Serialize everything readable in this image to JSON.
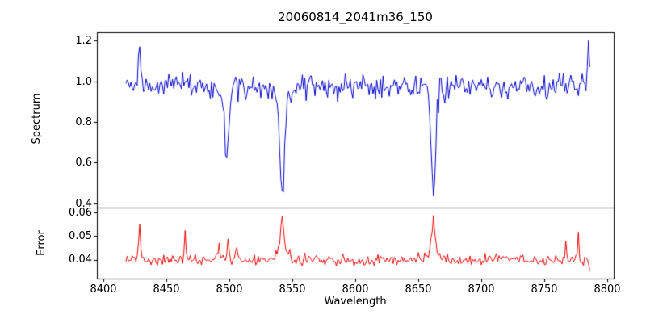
{
  "figure": {
    "background": "#ffffff",
    "axis_color": "#000000"
  },
  "chart_data": {
    "type": "line",
    "title": "20060814_2041m36_150",
    "xlabel": "Wavelength",
    "grid": false,
    "legend": false,
    "xlim": [
      8395,
      8805
    ],
    "xticks": [
      8400,
      8450,
      8500,
      8550,
      8600,
      8650,
      8700,
      8750,
      8800
    ],
    "xtick_labels": [
      "8400",
      "8450",
      "8500",
      "8550",
      "8600",
      "8650",
      "8700",
      "8750",
      "8800"
    ],
    "panels": [
      {
        "name": "spectrum",
        "ylabel": "Spectrum",
        "ylim": [
          0.38,
          1.24
        ],
        "yticks": [
          1.2,
          1.0,
          0.8,
          0.6,
          0.4
        ],
        "ytick_labels": [
          "1.2",
          "1.0",
          "0.8",
          "0.6",
          "0.4"
        ],
        "color": "#0000cc",
        "line_width": 1,
        "series": {
          "x_start": 8418,
          "x_end": 8786,
          "x_step": 1,
          "baseline": 0.975,
          "noise_amplitude": 0.09,
          "seed": 20060814,
          "features": [
            {
              "type": "emission",
              "center": 8429,
              "height": 0.21,
              "width": 1.3
            },
            {
              "type": "absorption",
              "center": 8498,
              "depth": 0.32,
              "width": 2.0
            },
            {
              "type": "absorption",
              "center": 8498,
              "depth": 0.05,
              "width": 5.0
            },
            {
              "type": "absorption",
              "center": 8542,
              "depth": 0.47,
              "width": 2.4
            },
            {
              "type": "absorption",
              "center": 8542,
              "depth": 0.08,
              "width": 7.0
            },
            {
              "type": "absorption",
              "center": 8662,
              "depth": 0.46,
              "width": 2.2
            },
            {
              "type": "absorption",
              "center": 8662,
              "depth": 0.07,
              "width": 6.0
            },
            {
              "type": "emission",
              "center": 8785,
              "height": 0.23,
              "width": 0.9
            }
          ]
        }
      },
      {
        "name": "error",
        "ylabel": "Error",
        "ylim": [
          0.032,
          0.062
        ],
        "yticks": [
          0.06,
          0.05,
          0.04
        ],
        "ytick_labels": [
          "0.06",
          "0.05",
          "0.04"
        ],
        "color": "#ee0000",
        "line_width": 1,
        "series": {
          "x_start": 8418,
          "x_end": 8786,
          "x_step": 1,
          "baseline": 0.04,
          "noise_amplitude": 0.0035,
          "seed": 2041,
          "features": [
            {
              "type": "emission",
              "center": 8429,
              "height": 0.016,
              "width": 1.0
            },
            {
              "type": "emission",
              "center": 8465,
              "height": 0.011,
              "width": 0.9
            },
            {
              "type": "emission",
              "center": 8492,
              "height": 0.006,
              "width": 1.4
            },
            {
              "type": "emission",
              "center": 8499,
              "height": 0.007,
              "width": 1.2
            },
            {
              "type": "emission",
              "center": 8506,
              "height": 0.004,
              "width": 1.5
            },
            {
              "type": "emission",
              "center": 8542,
              "height": 0.015,
              "width": 1.6
            },
            {
              "type": "emission",
              "center": 8542,
              "height": 0.004,
              "width": 6.0
            },
            {
              "type": "emission",
              "center": 8662,
              "height": 0.014,
              "width": 1.8
            },
            {
              "type": "emission",
              "center": 8662,
              "height": 0.003,
              "width": 6.0
            },
            {
              "type": "emission",
              "center": 8767,
              "height": 0.01,
              "width": 0.8
            },
            {
              "type": "emission",
              "center": 8777,
              "height": 0.011,
              "width": 0.8
            },
            {
              "type": "absorption",
              "center": 8786,
              "depth": 0.005,
              "width": 1.0
            }
          ]
        }
      }
    ]
  }
}
